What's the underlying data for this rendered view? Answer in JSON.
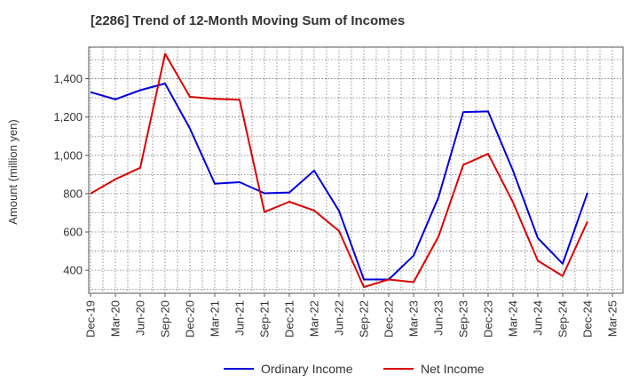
{
  "chart_data": {
    "type": "line",
    "title": "[2286]  Trend of 12-Month Moving Sum of Incomes",
    "xlabel": "",
    "ylabel": "Amount (million yen)",
    "categories": [
      "Dec-19",
      "Mar-20",
      "Jun-20",
      "Sep-20",
      "Dec-20",
      "Mar-21",
      "Jun-21",
      "Sep-21",
      "Dec-21",
      "Mar-22",
      "Jun-22",
      "Sep-22",
      "Dec-22",
      "Mar-23",
      "Jun-23",
      "Sep-23",
      "Dec-23",
      "Mar-24",
      "Jun-24",
      "Sep-24",
      "Dec-24",
      "Mar-25"
    ],
    "yticks": [
      400,
      600,
      800,
      1000,
      1200,
      1400
    ],
    "ytick_labels": [
      "400",
      "600",
      "800",
      "1,000",
      "1,200",
      "1,400"
    ],
    "ylim": [
      280,
      1565
    ],
    "grid": true,
    "legend_position": "bottom-center",
    "series": [
      {
        "name": "Ordinary Income",
        "color": "#0000dd",
        "values": [
          1330,
          1292,
          1340,
          1375,
          1140,
          852,
          860,
          802,
          806,
          920,
          710,
          352,
          352,
          476,
          780,
          1226,
          1229,
          920,
          568,
          434,
          805,
          null
        ]
      },
      {
        "name": "Net Income",
        "color": "#dd0000",
        "values": [
          800,
          875,
          935,
          1530,
          1305,
          1295,
          1290,
          704,
          758,
          712,
          605,
          312,
          352,
          338,
          575,
          950,
          1008,
          755,
          450,
          370,
          655,
          null
        ]
      }
    ]
  }
}
